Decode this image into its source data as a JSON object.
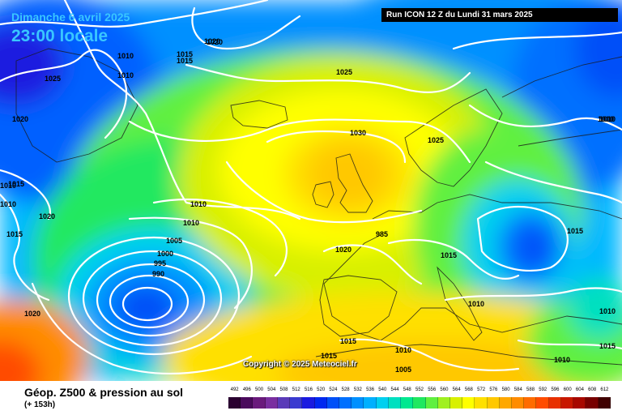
{
  "header": {
    "date": "Dimanche 6 avril 2025",
    "time": "23:00 locale",
    "run": "Run ICON 12 Z du Lundi 31 mars 2025"
  },
  "footer": {
    "title": "Géop. Z500 & pression au sol",
    "subtitle": "(+ 153h)",
    "copyright": "Copyright © 2025 Meteociel.fr"
  },
  "legend": {
    "values": [
      492,
      496,
      500,
      504,
      508,
      512,
      516,
      520,
      524,
      528,
      532,
      536,
      540,
      544,
      548,
      552,
      556,
      560,
      564,
      568,
      572,
      576,
      580,
      584,
      588,
      592,
      596,
      600,
      604,
      608,
      612
    ],
    "colors": [
      "#2a0030",
      "#4a0a5c",
      "#6a1a7c",
      "#7a2ea0",
      "#5a3ab8",
      "#3a3ad0",
      "#1a1ae0",
      "#0028f0",
      "#0050f8",
      "#0070ff",
      "#0090ff",
      "#00b0ff",
      "#00d0f0",
      "#00e0c0",
      "#00e890",
      "#20e860",
      "#60f040",
      "#a0f020",
      "#d8f000",
      "#ffff00",
      "#ffe000",
      "#ffc800",
      "#ffa800",
      "#ff8c00",
      "#ff6c00",
      "#ff4c00",
      "#e83000",
      "#c81800",
      "#a80800",
      "#780000",
      "#400000"
    ]
  },
  "map": {
    "isobars": [
      {
        "label": "1010"
      },
      {
        "label": "1015"
      },
      {
        "label": "1020"
      },
      {
        "label": "1025"
      },
      {
        "label": "1020"
      },
      {
        "label": "1015"
      },
      {
        "label": "1010"
      },
      {
        "label": "1020"
      },
      {
        "label": "1010"
      },
      {
        "label": "1020"
      },
      {
        "label": "1025"
      },
      {
        "label": "1030"
      },
      {
        "label": "1025"
      },
      {
        "label": "1010"
      },
      {
        "label": "1010"
      },
      {
        "label": "1005"
      },
      {
        "label": "1000"
      },
      {
        "label": "995"
      },
      {
        "label": "990"
      },
      {
        "label": "985"
      },
      {
        "label": "1020"
      },
      {
        "label": "1015"
      },
      {
        "label": "1015"
      },
      {
        "label": "1010"
      },
      {
        "label": "1010"
      },
      {
        "label": "1010"
      },
      {
        "label": "1015"
      },
      {
        "label": "1010"
      },
      {
        "label": "1015"
      },
      {
        "label": "1010"
      },
      {
        "label": "1005"
      },
      {
        "label": "1010"
      },
      {
        "label": "1015"
      },
      {
        "label": "1020"
      },
      {
        "label": "1015"
      },
      {
        "label": "1010"
      },
      {
        "label": "1015"
      }
    ]
  }
}
